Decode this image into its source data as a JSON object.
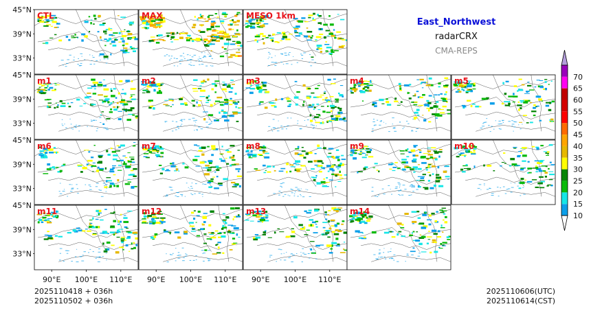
{
  "chart_data": {
    "type": "heatmap",
    "title": "East_Northwest",
    "subtitle": "radarCRX",
    "source": "CMA-REPS",
    "panels": [
      {
        "name": "CTL",
        "intensity": 0.45
      },
      {
        "name": "MAX",
        "intensity": 1.0
      },
      {
        "name": "MESO_1km",
        "intensity": 0.6
      },
      {
        "name": "m1",
        "intensity": 0.5
      },
      {
        "name": "m2",
        "intensity": 0.55
      },
      {
        "name": "m3",
        "intensity": 0.5
      },
      {
        "name": "m4",
        "intensity": 0.5
      },
      {
        "name": "m5",
        "intensity": 0.5
      },
      {
        "name": "m6",
        "intensity": 0.45
      },
      {
        "name": "m7",
        "intensity": 0.5
      },
      {
        "name": "m8",
        "intensity": 0.5
      },
      {
        "name": "m9",
        "intensity": 0.55
      },
      {
        "name": "m10",
        "intensity": 0.4
      },
      {
        "name": "m11",
        "intensity": 0.5
      },
      {
        "name": "m12",
        "intensity": 0.5
      },
      {
        "name": "m13",
        "intensity": 0.5
      },
      {
        "name": "m14",
        "intensity": 0.5
      }
    ],
    "lon_ticks": [
      "90°E",
      "100°E",
      "110°E"
    ],
    "lon_tick_values": [
      90,
      100,
      110
    ],
    "lat_ticks": [
      "45°N",
      "39°N",
      "33°N"
    ],
    "lat_tick_values": [
      45,
      39,
      33
    ],
    "xlim": [
      85,
      115
    ],
    "ylim": [
      29,
      45
    ],
    "colorbar": {
      "levels": [
        10,
        15,
        20,
        25,
        30,
        35,
        40,
        45,
        50,
        55,
        60,
        65,
        70
      ],
      "labels": [
        "10",
        "15",
        "20",
        "25",
        "30",
        "35",
        "40",
        "45",
        "50",
        "55",
        "60",
        "65",
        "70"
      ],
      "colors": [
        "#0c9fe9",
        "#16e6e6",
        "#0aba0a",
        "#068406",
        "#ffff00",
        "#e6b800",
        "#ffa500",
        "#ff6a00",
        "#ff0000",
        "#d40000",
        "#c00000",
        "#ff00f0",
        "#9900bb"
      ],
      "over_color": "#b39ddb",
      "under_color": "#ffffff"
    },
    "footer_left": [
      "2025110418  +  036h",
      "2025110502  +  036h"
    ],
    "footer_right": [
      "2025110606(UTC)",
      "2025110614(CST)"
    ]
  }
}
